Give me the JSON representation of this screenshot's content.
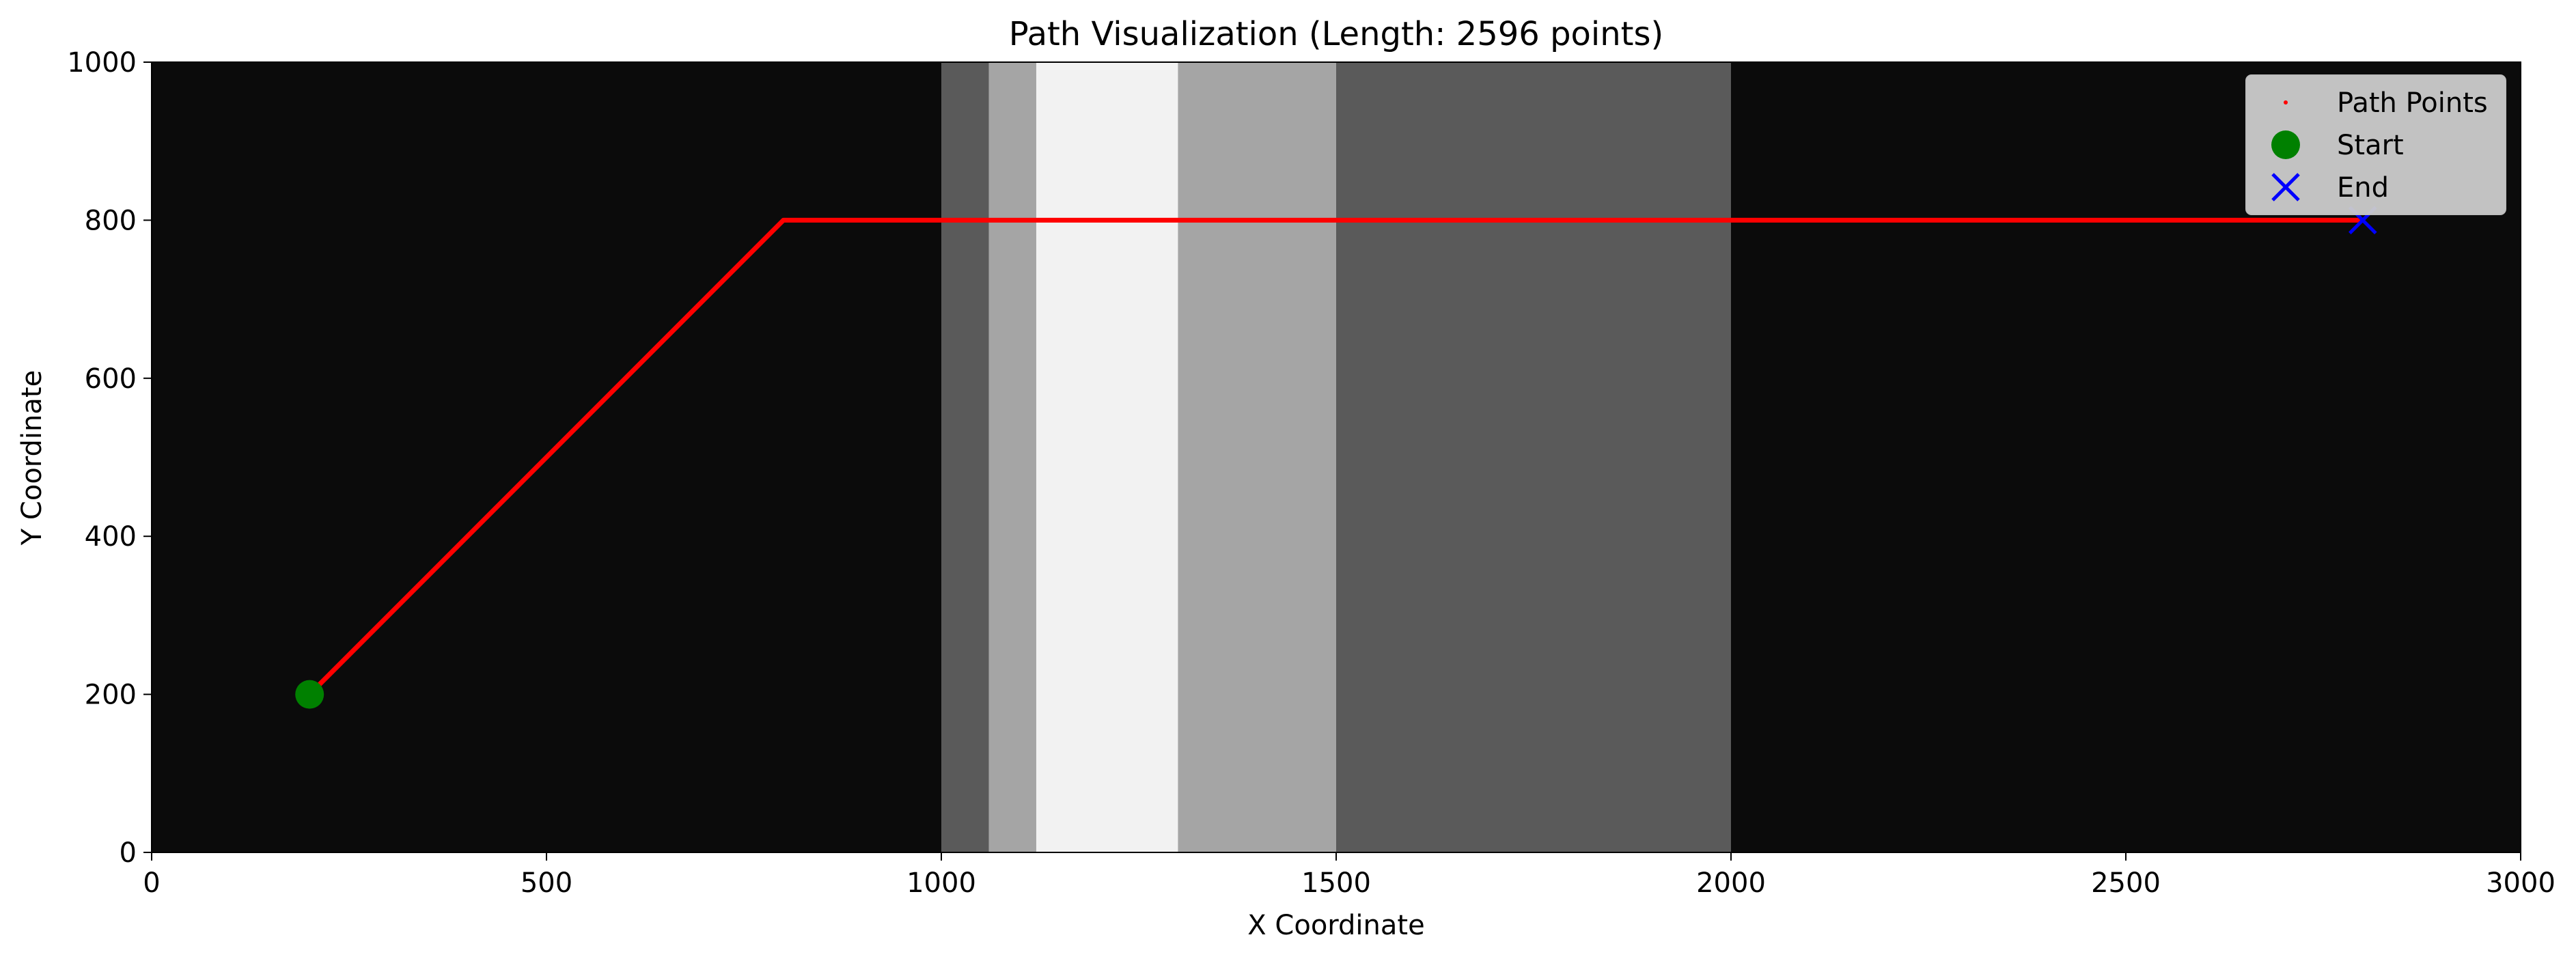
{
  "chart_data": {
    "type": "line",
    "title": "Path Visualization (Length: 2596 points)",
    "xlabel": "X Coordinate",
    "ylabel": "Y Coordinate",
    "xlim": [
      0,
      3000
    ],
    "ylim": [
      0,
      1000
    ],
    "xticks": [
      "0",
      "500",
      "1000",
      "1500",
      "2000",
      "2500",
      "3000"
    ],
    "yticks": [
      "0",
      "200",
      "400",
      "600",
      "800",
      "1000"
    ],
    "grid": false,
    "legend_position": "top-right",
    "background": {
      "base_color": "#0b0b0b",
      "bands": [
        {
          "x0": 1000,
          "x1": 1060,
          "color": "#5a5a5a"
        },
        {
          "x0": 1060,
          "x1": 1120,
          "color": "#a5a5a5"
        },
        {
          "x0": 1120,
          "x1": 1300,
          "color": "#f2f2f2"
        },
        {
          "x0": 1300,
          "x1": 1500,
          "color": "#a5a5a5"
        },
        {
          "x0": 1500,
          "x1": 2000,
          "color": "#5a5a5a"
        }
      ]
    },
    "series": [
      {
        "name": "Path Points",
        "kind": "line",
        "color": "#ff0000",
        "points": [
          [
            200,
            200
          ],
          [
            800,
            800
          ],
          [
            2800,
            800
          ]
        ]
      },
      {
        "name": "Start",
        "kind": "marker-circle",
        "color": "#008000",
        "points": [
          [
            200,
            200
          ]
        ]
      },
      {
        "name": "End",
        "kind": "marker-x",
        "color": "#0000ff",
        "points": [
          [
            2800,
            800
          ]
        ]
      }
    ],
    "legend": [
      {
        "label": "Path Points",
        "marker": "dot",
        "color": "#ff0000"
      },
      {
        "label": "Start",
        "marker": "circle",
        "color": "#008000"
      },
      {
        "label": "End",
        "marker": "x",
        "color": "#0000ff"
      }
    ]
  }
}
